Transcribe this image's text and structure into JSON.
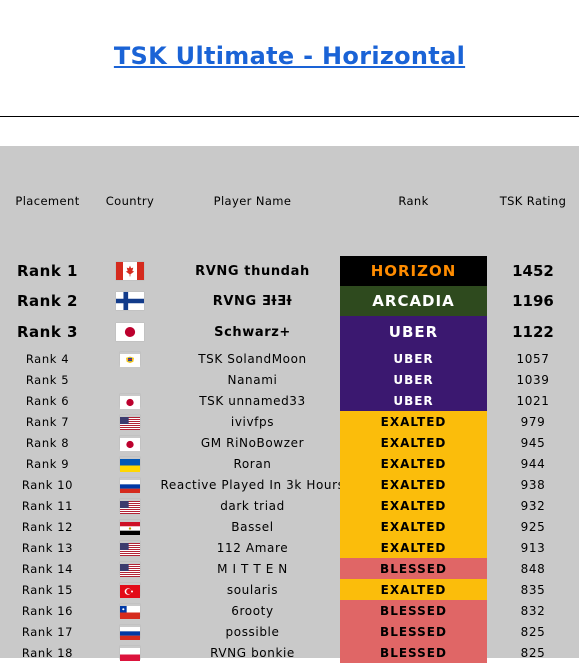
{
  "page": {
    "title": "TSK Ultimate - Horizontal"
  },
  "headers": {
    "placement": "Placement",
    "country": "Country",
    "player_name": "Player Name",
    "rank": "Rank",
    "tsk_rating": "TSK Rating"
  },
  "colors": {
    "title": "#1a63d6",
    "table_bg": "#c9c9c9",
    "horizon_bg": "#000000",
    "horizon_fg": "#ff8c00",
    "arcadia_bg": "#2e4a1e",
    "arcadia_fg": "#ffffff",
    "uber_bg": "#3b1870",
    "uber_fg": "#ffffff",
    "exalted_bg": "#fbbd0b",
    "exalted_fg": "#000000",
    "blessed_bg": "#e06666",
    "blessed_fg": "#000000"
  },
  "rows": [
    {
      "placement": "Rank 1",
      "country": "canada-flag",
      "name": "RVNG thundah",
      "rank": "HORIZON",
      "rating": "1452"
    },
    {
      "placement": "Rank 2",
      "country": "finland-flag",
      "name": "RVNG ƎƗƎƗ",
      "rank": "ARCADIA",
      "rating": "1196"
    },
    {
      "placement": "Rank 3",
      "country": "japan-flag",
      "name": "Schwarz+",
      "rank": "UBER",
      "rating": "1122"
    },
    {
      "placement": "Rank 4",
      "country": "us-virgin-islands-flag",
      "name": "TSK SolandMoon",
      "rank": "UBER",
      "rating": "1057"
    },
    {
      "placement": "Rank 5",
      "country": "",
      "name": "Nanami",
      "rank": "UBER",
      "rating": "1039"
    },
    {
      "placement": "Rank 6",
      "country": "japan-flag",
      "name": "TSK unnamed33",
      "rank": "UBER",
      "rating": "1021"
    },
    {
      "placement": "Rank 7",
      "country": "usa-flag",
      "name": "ivivfps",
      "rank": "EXALTED",
      "rating": "979"
    },
    {
      "placement": "Rank 8",
      "country": "japan-flag",
      "name": "GM RiNoBowzer",
      "rank": "EXALTED",
      "rating": "945"
    },
    {
      "placement": "Rank 9",
      "country": "ukraine-flag",
      "name": "Roran",
      "rank": "EXALTED",
      "rating": "944"
    },
    {
      "placement": "Rank 10",
      "country": "russia-flag",
      "name": "Reactive Played In 3k Hours",
      "rank": "EXALTED",
      "rating": "938"
    },
    {
      "placement": "Rank 11",
      "country": "usa-flag",
      "name": "dark triad",
      "rank": "EXALTED",
      "rating": "932"
    },
    {
      "placement": "Rank 12",
      "country": "egypt-flag",
      "name": "Bassel",
      "rank": "EXALTED",
      "rating": "925"
    },
    {
      "placement": "Rank 13",
      "country": "usa-flag",
      "name": "112 Amare",
      "rank": "EXALTED",
      "rating": "913"
    },
    {
      "placement": "Rank 14",
      "country": "usa-flag",
      "name": "M I T T E N",
      "rank": "BLESSED",
      "rating": "848"
    },
    {
      "placement": "Rank 15",
      "country": "turkey-flag",
      "name": "soularis",
      "rank": "EXALTED",
      "rating": "835"
    },
    {
      "placement": "Rank 16",
      "country": "chile-flag",
      "name": "6rooty",
      "rank": "BLESSED",
      "rating": "832"
    },
    {
      "placement": "Rank 17",
      "country": "russia-flag",
      "name": "possible",
      "rank": "BLESSED",
      "rating": "825"
    },
    {
      "placement": "Rank 18",
      "country": "poland-flag",
      "name": "RVNG bonkie",
      "rank": "BLESSED",
      "rating": "825"
    }
  ]
}
